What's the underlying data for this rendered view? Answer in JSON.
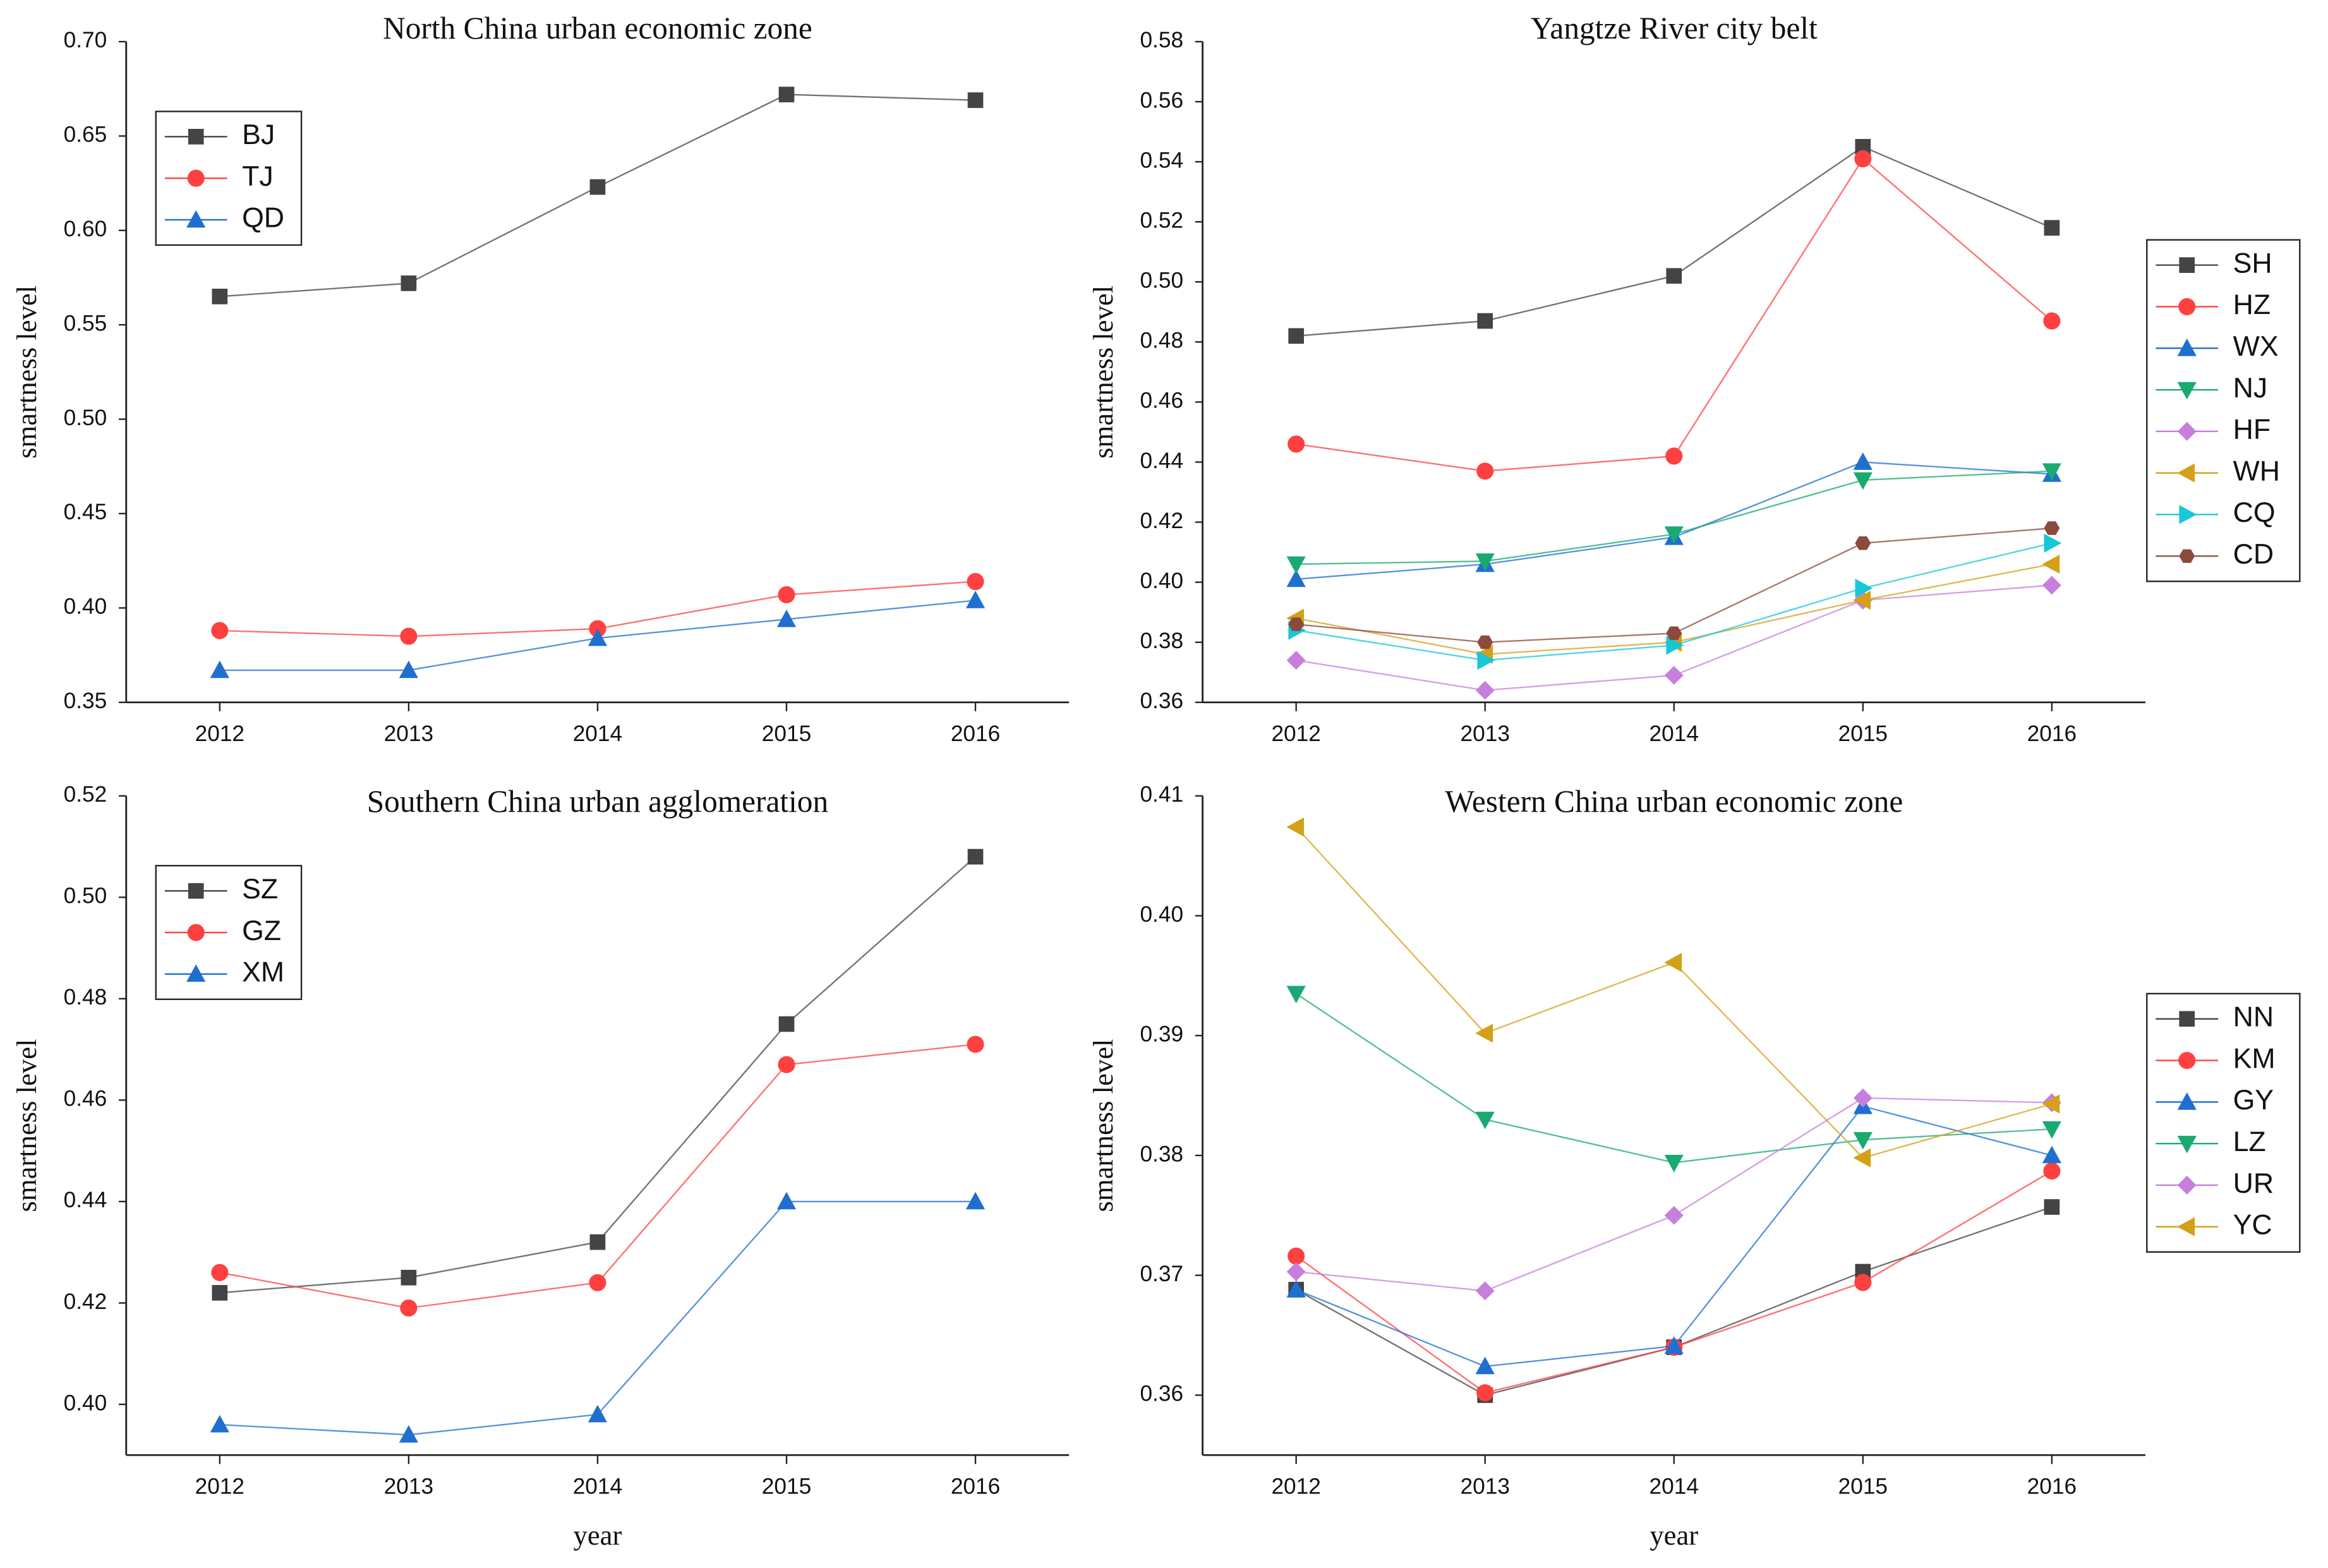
{
  "chart_data": [
    {
      "type": "line",
      "title": "North China urban economic zone",
      "ylabel": "smartness level",
      "categories": [
        "2012",
        "2013",
        "2014",
        "2015",
        "2016"
      ],
      "ylim": [
        0.35,
        0.7
      ],
      "yticks": [
        0.35,
        {
          "value": 0.4,
          "label": "0.40"
        },
        0.45,
        {
          "value": 0.5,
          "label": "0.50"
        },
        0.55,
        {
          "value": 0.6,
          "label": "0.60"
        },
        0.65,
        {
          "value": 0.7,
          "label": "0.70"
        }
      ],
      "legend": "upper left",
      "series": [
        {
          "name": "BJ",
          "color": "#444444",
          "marker": "square",
          "values": [
            0.565,
            0.572,
            0.623,
            0.672,
            0.669
          ]
        },
        {
          "name": "TJ",
          "color": "#ff4040",
          "marker": "circle",
          "values": [
            0.388,
            0.385,
            0.389,
            0.407,
            0.414
          ]
        },
        {
          "name": "QD",
          "color": "#1f6fd0",
          "marker": "triangle-up",
          "values": [
            0.367,
            0.367,
            0.384,
            0.394,
            0.404
          ]
        }
      ]
    },
    {
      "type": "line",
      "title": "Yangtze River city belt",
      "ylabel": "smartness level",
      "categories": [
        "2012",
        "2013",
        "2014",
        "2015",
        "2016"
      ],
      "ylim": [
        0.36,
        0.58
      ],
      "yticks": [
        0.36,
        0.38,
        {
          "value": 0.4,
          "label": "0.40"
        },
        0.42,
        0.44,
        0.46,
        0.48,
        {
          "value": 0.5,
          "label": "0.50"
        },
        0.52,
        0.54,
        0.56,
        0.58
      ],
      "legend": "right",
      "series": [
        {
          "name": "SH",
          "color": "#444444",
          "marker": "square",
          "values": [
            0.482,
            0.487,
            0.502,
            0.545,
            0.518
          ]
        },
        {
          "name": "HZ",
          "color": "#ff4040",
          "marker": "circle",
          "values": [
            0.446,
            0.437,
            0.442,
            0.541,
            0.487
          ]
        },
        {
          "name": "WX",
          "color": "#1f6fd0",
          "marker": "triangle-up",
          "values": [
            0.401,
            0.406,
            0.415,
            0.44,
            0.436
          ]
        },
        {
          "name": "NJ",
          "color": "#1aaa70",
          "marker": "triangle-down",
          "values": [
            0.406,
            0.407,
            0.416,
            0.434,
            0.437
          ]
        },
        {
          "name": "HF",
          "color": "#c77fdd",
          "marker": "diamond",
          "values": [
            0.374,
            0.364,
            0.369,
            0.394,
            0.399
          ]
        },
        {
          "name": "WH",
          "color": "#d4a017",
          "marker": "triangle-left",
          "values": [
            0.388,
            0.376,
            0.38,
            0.394,
            0.406
          ]
        },
        {
          "name": "CQ",
          "color": "#17c7d9",
          "marker": "triangle-right",
          "values": [
            0.384,
            0.374,
            0.379,
            0.398,
            0.413
          ]
        },
        {
          "name": "CD",
          "color": "#8b4a3c",
          "marker": "hexagon",
          "values": [
            0.386,
            0.38,
            0.383,
            0.413,
            0.418
          ]
        }
      ]
    },
    {
      "type": "line",
      "title": "Southern China urban agglomeration",
      "ylabel": "smartness level",
      "xlabel": "year",
      "categories": [
        "2012",
        "2013",
        "2014",
        "2015",
        "2016"
      ],
      "ylim": [
        0.39,
        0.52
      ],
      "yticks": [
        {
          "value": 0.4,
          "label": "0.40"
        },
        0.42,
        0.44,
        0.46,
        0.48,
        {
          "value": 0.5,
          "label": "0.50"
        },
        0.52
      ],
      "legend": "upper left",
      "series": [
        {
          "name": "SZ",
          "color": "#444444",
          "marker": "square",
          "values": [
            0.422,
            0.425,
            0.432,
            0.475,
            0.508
          ]
        },
        {
          "name": "GZ",
          "color": "#ff4040",
          "marker": "circle",
          "values": [
            0.426,
            0.419,
            0.424,
            0.467,
            0.471
          ]
        },
        {
          "name": "XM",
          "color": "#1f6fd0",
          "marker": "triangle-up",
          "values": [
            0.396,
            0.394,
            0.398,
            0.44,
            0.44
          ]
        }
      ]
    },
    {
      "type": "line",
      "title": "Western China urban economic zone",
      "ylabel": "smartness level",
      "xlabel": "year",
      "categories": [
        "2012",
        "2013",
        "2014",
        "2015",
        "2016"
      ],
      "ylim": [
        0.355,
        0.41
      ],
      "yticks": [
        0.36,
        0.37,
        0.38,
        0.39,
        {
          "value": 0.4,
          "label": "0.40"
        },
        0.41
      ],
      "legend": "right",
      "series": [
        {
          "name": "NN",
          "color": "#444444",
          "marker": "square",
          "values": [
            0.3688,
            0.36,
            0.364,
            0.3703,
            0.3757
          ]
        },
        {
          "name": "KM",
          "color": "#ff4040",
          "marker": "circle",
          "values": [
            0.3716,
            0.3602,
            0.364,
            0.3694,
            0.3787
          ]
        },
        {
          "name": "GY",
          "color": "#1f6fd0",
          "marker": "triangle-up",
          "values": [
            0.3688,
            0.3624,
            0.3641,
            0.3841,
            0.38
          ]
        },
        {
          "name": "LZ",
          "color": "#1aaa70",
          "marker": "triangle-down",
          "values": [
            0.3935,
            0.383,
            0.3794,
            0.3813,
            0.3822
          ]
        },
        {
          "name": "UR",
          "color": "#c77fdd",
          "marker": "diamond",
          "values": [
            0.3703,
            0.3687,
            0.375,
            0.3848,
            0.3844
          ]
        },
        {
          "name": "YC",
          "color": "#d4a017",
          "marker": "triangle-left",
          "values": [
            0.4074,
            0.3902,
            0.3961,
            0.3798,
            0.3843
          ]
        }
      ]
    }
  ]
}
